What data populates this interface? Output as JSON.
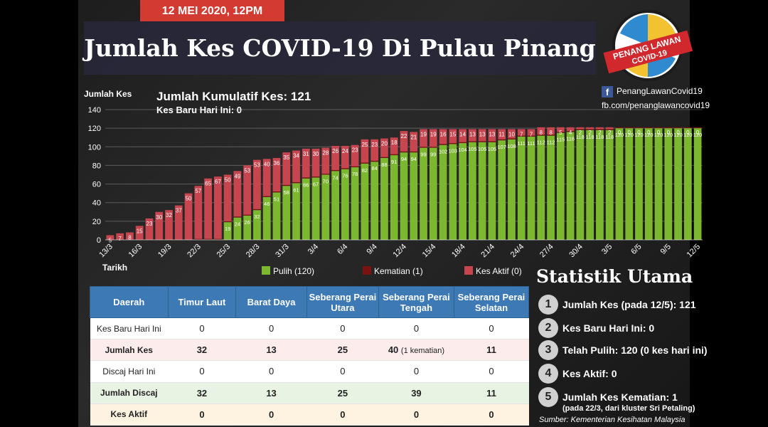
{
  "header": {
    "date": "12 MEI 2020, 12PM",
    "title": "Jumlah Kes COVID-19 Di Pulau Pinang"
  },
  "logo": {
    "line1": "PENANG LAWAN",
    "line2": "COVID-19"
  },
  "social": {
    "facebook_name": "PenangLawanCovid19",
    "facebook_url": "fb.com/penanglawancovid19"
  },
  "chart_data": {
    "type": "bar",
    "stacked": true,
    "title": "Jumlah Kumulatif Kes: 121",
    "subtitle": "Kes Baru Hari Ini: 0",
    "ylabel": "Jumlah Kes",
    "xlabel": "Tarikh",
    "ylim": [
      0,
      140
    ],
    "yticks": [
      0,
      20,
      40,
      60,
      80,
      100,
      120,
      140
    ],
    "grid": true,
    "legend_position": "bottom",
    "colors": {
      "pulih": "#7cb82f",
      "kematian": "#7a1212",
      "aktif": "#c6454f"
    },
    "categories": [
      "13/3",
      "14/3",
      "15/3",
      "16/3",
      "17/3",
      "18/3",
      "19/3",
      "20/3",
      "21/3",
      "22/3",
      "23/3",
      "24/3",
      "25/3",
      "26/3",
      "27/3",
      "28/3",
      "29/3",
      "30/3",
      "31/3",
      "1/4",
      "2/4",
      "3/4",
      "4/4",
      "5/4",
      "6/4",
      "7/4",
      "8/4",
      "9/4",
      "10/4",
      "11/4",
      "12/4",
      "13/4",
      "14/4",
      "15/4",
      "16/4",
      "17/4",
      "18/4",
      "19/4",
      "20/4",
      "21/4",
      "22/4",
      "23/4",
      "24/4",
      "25/4",
      "26/4",
      "27/4",
      "28/4",
      "29/4",
      "30/4",
      "1/5",
      "2/5",
      "3/5",
      "4/5",
      "5/5",
      "6/5",
      "7/5",
      "8/5",
      "9/5",
      "10/5",
      "11/5",
      "12/5"
    ],
    "tick_labels": [
      "13/3",
      "16/3",
      "19/3",
      "22/3",
      "25/3",
      "28/3",
      "31/3",
      "3/4",
      "6/4",
      "9/4",
      "12/4",
      "15/4",
      "18/4",
      "21/4",
      "24/4",
      "27/4",
      "30/4",
      "3/5",
      "6/5",
      "9/5",
      "12/5"
    ],
    "series": [
      {
        "name": "Pulih (120)",
        "key": "pulih",
        "values": [
          0,
          0,
          0,
          0,
          0,
          0,
          0,
          0,
          0,
          0,
          0,
          0,
          19,
          24,
          26,
          32,
          46,
          51,
          58,
          61,
          66,
          67,
          70,
          74,
          76,
          78,
          82,
          84,
          88,
          91,
          94,
          94,
          99,
          99,
          102,
          103,
          104,
          105,
          105,
          105,
          107,
          108,
          111,
          111,
          112,
          112,
          115,
          116,
          118,
          118,
          118,
          118,
          120,
          120,
          120,
          120,
          120,
          120,
          120,
          120,
          120
        ]
      },
      {
        "name": "Kematian (1)",
        "key": "kematian",
        "values": [
          0,
          0,
          0,
          0,
          0,
          0,
          0,
          0,
          0,
          1,
          1,
          1,
          1,
          1,
          1,
          1,
          1,
          1,
          1,
          1,
          1,
          1,
          1,
          1,
          1,
          1,
          1,
          1,
          1,
          1,
          1,
          1,
          1,
          1,
          1,
          1,
          1,
          1,
          1,
          1,
          1,
          1,
          1,
          1,
          1,
          1,
          1,
          1,
          1,
          1,
          1,
          1,
          1,
          1,
          1,
          1,
          1,
          1,
          1,
          1,
          1
        ]
      },
      {
        "name": "Kes Aktif (0)",
        "key": "aktif",
        "values": [
          5,
          7,
          8,
          15,
          23,
          30,
          32,
          37,
          50,
          57,
          65,
          67,
          50,
          49,
          53,
          53,
          40,
          36,
          35,
          34,
          31,
          30,
          28,
          26,
          24,
          23,
          25,
          23,
          20,
          18,
          22,
          21,
          19,
          19,
          16,
          15,
          14,
          13,
          13,
          13,
          11,
          10,
          7,
          7,
          8,
          8,
          5,
          4,
          2,
          2,
          2,
          2,
          0,
          0,
          0,
          0,
          0,
          0,
          0,
          0,
          0
        ]
      }
    ]
  },
  "table": {
    "headers": [
      "Daerah",
      "Timur Laut",
      "Barat Daya",
      "Seberang Perai Utara",
      "Seberang Perai Tengah",
      "Seberang Perai Selatan"
    ],
    "rows": [
      {
        "label": "Kes Baru Hari Ini",
        "values": [
          "0",
          "0",
          "0",
          "0",
          "0"
        ]
      },
      {
        "label": "Jumlah Kes",
        "values": [
          "32",
          "13",
          "25",
          "40",
          "11"
        ],
        "note": "(1 kematian)"
      },
      {
        "label": "Discaj Hari Ini",
        "values": [
          "0",
          "0",
          "0",
          "0",
          "0"
        ]
      },
      {
        "label": "Jumlah Discaj",
        "values": [
          "32",
          "13",
          "25",
          "39",
          "11"
        ]
      },
      {
        "label": "Kes Aktif",
        "values": [
          "0",
          "0",
          "0",
          "0",
          "0"
        ]
      }
    ]
  },
  "stats": {
    "title": "Statistik Utama",
    "items": [
      {
        "num": "1",
        "text": "Jumlah Kes (pada 12/5): 121"
      },
      {
        "num": "2",
        "text": "Kes Baru Hari Ini: 0"
      },
      {
        "num": "3",
        "text": "Telah Pulih: 120 (0 kes hari ini)"
      },
      {
        "num": "4",
        "text": "Kes Aktif: 0"
      },
      {
        "num": "5",
        "text": "Jumlah Kes Kematian: 1",
        "sub": "(pada 22/3, dari kluster Sri Petaling)"
      }
    ]
  },
  "source": "Sumber: Kementerian Kesihatan Malaysia"
}
